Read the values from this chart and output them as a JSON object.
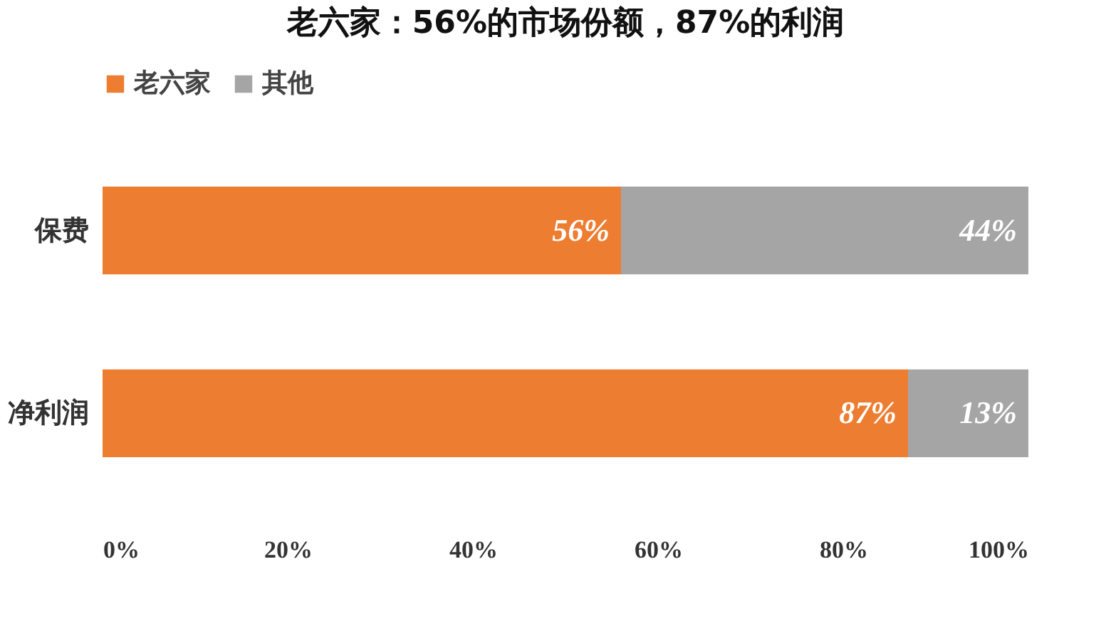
{
  "chart_data": {
    "type": "bar",
    "title": "老六家：56%的市场份额，87%的利润",
    "orientation": "horizontal",
    "stacked": true,
    "categories": [
      "保费",
      "净利润"
    ],
    "series": [
      {
        "name": "老六家",
        "color": "#ed7d31",
        "values": [
          56,
          87
        ],
        "value_labels": [
          "56%",
          "87%"
        ]
      },
      {
        "name": "其他",
        "color": "#a5a5a5",
        "values": [
          44,
          13
        ],
        "value_labels": [
          "44%",
          "13%"
        ]
      }
    ],
    "xlim": [
      0,
      100
    ],
    "xticks": [
      {
        "value": 0,
        "label": "0%"
      },
      {
        "value": 20,
        "label": "20%"
      },
      {
        "value": 40,
        "label": "40%"
      },
      {
        "value": 60,
        "label": "60%"
      },
      {
        "value": 80,
        "label": "80%"
      },
      {
        "value": 100,
        "label": "100%"
      }
    ],
    "legend": "top",
    "grid": false
  }
}
